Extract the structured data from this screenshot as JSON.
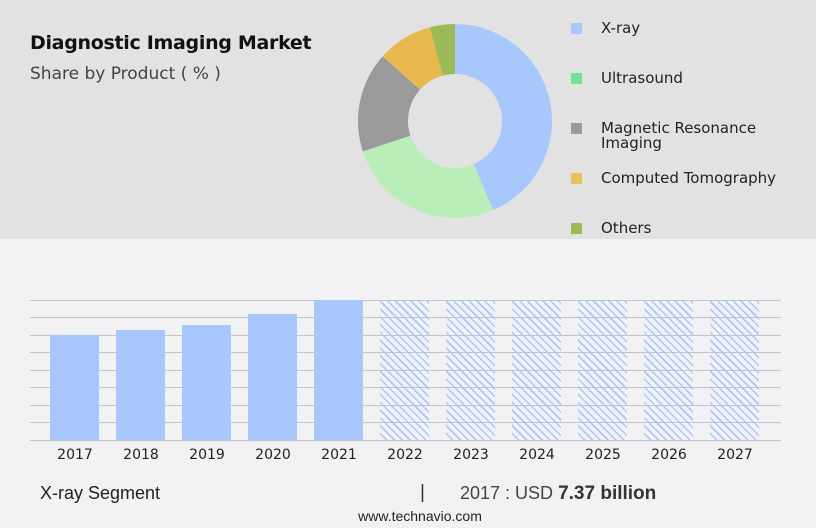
{
  "header": {
    "title": "Diagnostic Imaging Market",
    "subtitle": "Share by Product ( % )"
  },
  "legend": {
    "items": [
      {
        "label": "X-ray",
        "color": "#a8c8fd"
      },
      {
        "label": "Ultrasound",
        "color": "#6ee49a"
      },
      {
        "label": "Magnetic Resonance Imaging",
        "color": "#9a9a9a"
      },
      {
        "label": "Computed Tomography",
        "color": "#e6c25a"
      },
      {
        "label": "Others",
        "color": "#9cba58"
      }
    ]
  },
  "footer": {
    "segment_label": "X-ray Segment",
    "separator": "|",
    "value_prefix": "2017 : USD",
    "value": "7.37 billion",
    "url": "www.technavio.com"
  },
  "chart_data": [
    {
      "type": "pie",
      "title": "Diagnostic Imaging Market",
      "subtitle": "Share by Product ( % )",
      "donut": true,
      "categories": [
        "X-ray",
        "Ultrasound",
        "Magnetic Resonance Imaging",
        "Computed Tomography",
        "Others"
      ],
      "values": [
        43.6,
        26.4,
        16.7,
        9.2,
        4.2
      ],
      "colors": [
        "#a8c8fd",
        "#b9eeb9",
        "#9a9a9a",
        "#e6b84e",
        "#9cba58"
      ],
      "legend_position": "right"
    },
    {
      "type": "bar",
      "title": "X-ray Segment",
      "categories": [
        "2017",
        "2018",
        "2019",
        "2020",
        "2021",
        "2022",
        "2023",
        "2024",
        "2025",
        "2026",
        "2027"
      ],
      "series": [
        {
          "name": "X-ray Segment",
          "values": [
            7.37,
            null,
            null,
            null,
            null,
            null,
            null,
            null,
            null,
            null,
            null
          ]
        }
      ],
      "forecast_categories": [
        "2022",
        "2023",
        "2024",
        "2025",
        "2026",
        "2027"
      ],
      "annotation": "2017 : USD 7.37 billion",
      "xlabel": "",
      "ylabel": "",
      "grid": true,
      "gridline_count": 9
    }
  ]
}
